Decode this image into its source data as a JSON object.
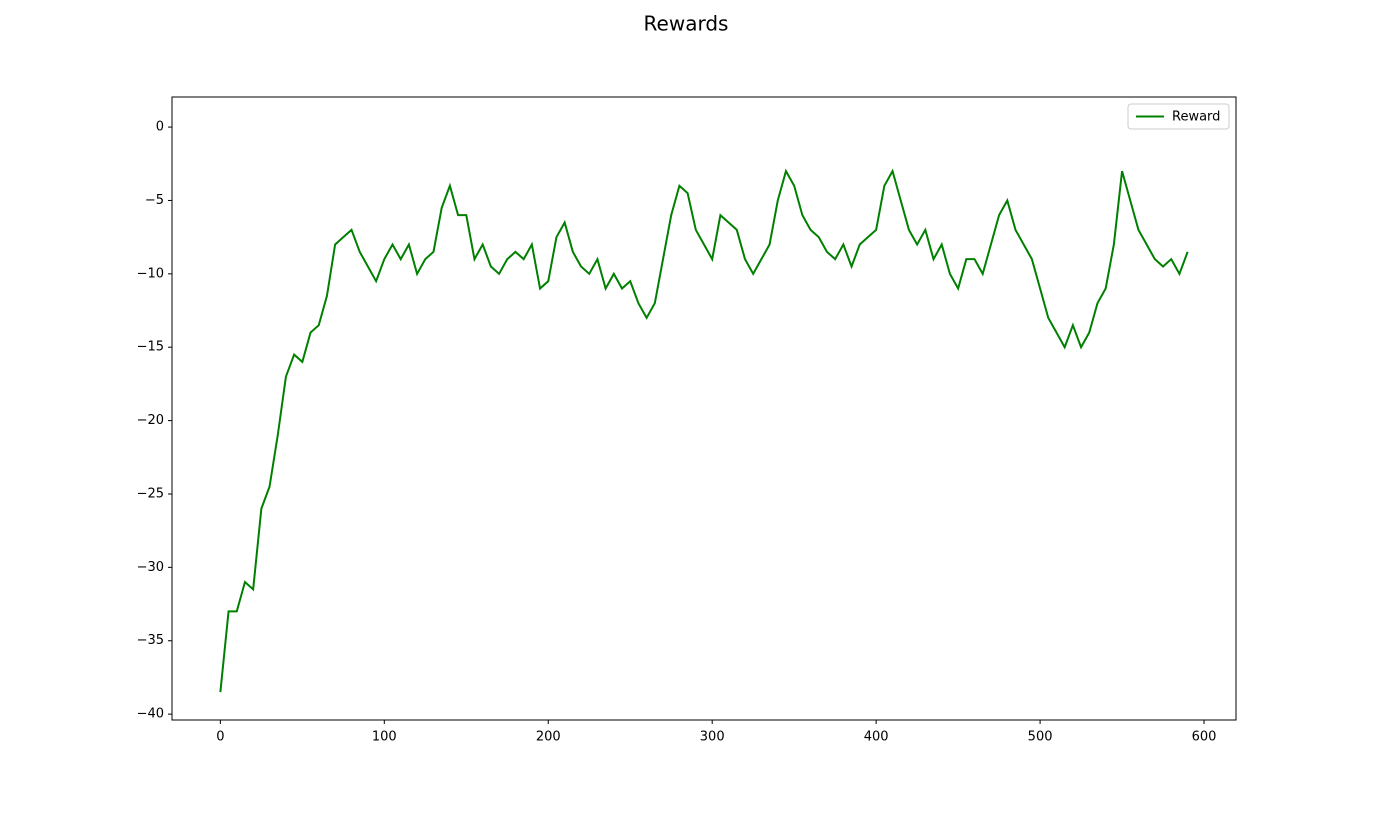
{
  "chart_data": {
    "type": "line",
    "title": "Rewards",
    "x": [
      0,
      5,
      10,
      15,
      20,
      25,
      30,
      35,
      40,
      45,
      50,
      55,
      60,
      65,
      70,
      75,
      80,
      85,
      90,
      95,
      100,
      105,
      110,
      115,
      120,
      125,
      130,
      135,
      140,
      145,
      150,
      155,
      160,
      165,
      170,
      175,
      180,
      185,
      190,
      195,
      200,
      205,
      210,
      215,
      220,
      225,
      230,
      235,
      240,
      245,
      250,
      255,
      260,
      265,
      270,
      275,
      280,
      285,
      290,
      295,
      300,
      305,
      310,
      315,
      320,
      325,
      330,
      335,
      340,
      345,
      350,
      355,
      360,
      365,
      370,
      375,
      380,
      385,
      390,
      395,
      400,
      405,
      410,
      415,
      420,
      425,
      430,
      435,
      440,
      445,
      450,
      455,
      460,
      465,
      470,
      475,
      480,
      485,
      490,
      495,
      500,
      505,
      510,
      515,
      520,
      525,
      530,
      535,
      540,
      545,
      550,
      555,
      560,
      565,
      570,
      575,
      580,
      585,
      590
    ],
    "series": [
      {
        "name": "Reward",
        "color": "#008000",
        "values": [
          -38.5,
          -33,
          -33,
          -31,
          -31.5,
          -26,
          -24.5,
          -21,
          -17,
          -15.5,
          -16,
          -14,
          -13.5,
          -11.5,
          -8,
          -7.5,
          -7,
          -8.5,
          -9.5,
          -10.5,
          -9,
          -8,
          -9,
          -8,
          -10,
          -9,
          -8.5,
          -5.5,
          -4,
          -6,
          -6,
          -9,
          -8,
          -9.5,
          -10,
          -9,
          -8.5,
          -9,
          -8,
          -11,
          -10.5,
          -7.5,
          -6.5,
          -8.5,
          -9.5,
          -10,
          -9,
          -11,
          -10,
          -11,
          -10.5,
          -12,
          -13,
          -12,
          -9,
          -6,
          -4,
          -4.5,
          -7,
          -8,
          -9,
          -6,
          -6.5,
          -7,
          -9,
          -10,
          -9,
          -8,
          -5,
          -3,
          -4,
          -6,
          -7,
          -7.5,
          -8.5,
          -9,
          -8,
          -9.5,
          -8,
          -7.5,
          -7,
          -4,
          -3,
          -5,
          -7,
          -8,
          -7,
          -9,
          -8,
          -10,
          -11,
          -9,
          -9,
          -10,
          -8,
          -6,
          -5,
          -7,
          -8,
          -9,
          -11,
          -13,
          -14,
          -15,
          -13.5,
          -15,
          -14,
          -12,
          -11,
          -8,
          -3,
          -5,
          -7,
          -8,
          -9,
          -9.5,
          -9,
          -10,
          -8.5
        ]
      }
    ],
    "xlim": [
      -29.5,
      619.5
    ],
    "ylim": [
      -40.4,
      2.05
    ],
    "xticks": [
      0,
      100,
      200,
      300,
      400,
      500,
      600
    ],
    "yticks": [
      0,
      {
        "value": -5,
        "label": "−5"
      },
      {
        "value": -10,
        "label": "−10"
      },
      {
        "value": -15,
        "label": "−15"
      },
      {
        "value": -20,
        "label": "−20"
      },
      {
        "value": -25,
        "label": "−25"
      },
      {
        "value": -30,
        "label": "−30"
      },
      {
        "value": -35,
        "label": "−35"
      },
      {
        "value": -40,
        "label": "−40"
      }
    ],
    "legend": "upper right"
  }
}
